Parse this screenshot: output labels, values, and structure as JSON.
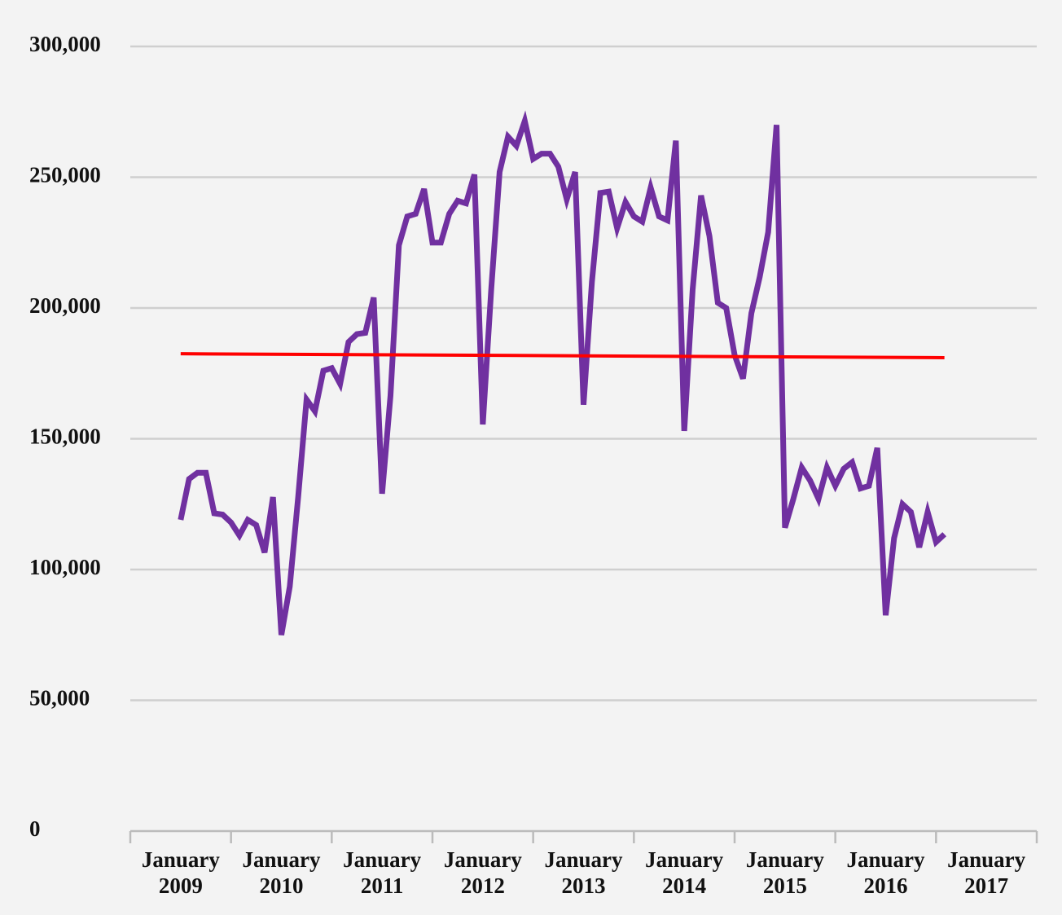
{
  "chart_data": {
    "type": "line",
    "categories": [
      "January 2009",
      null,
      null,
      null,
      null,
      null,
      null,
      null,
      null,
      null,
      null,
      null,
      "January 2010",
      null,
      null,
      null,
      null,
      null,
      null,
      null,
      null,
      null,
      null,
      null,
      "January 2011",
      null,
      null,
      null,
      null,
      null,
      null,
      null,
      null,
      null,
      null,
      null,
      "January 2012",
      null,
      null,
      null,
      null,
      null,
      null,
      null,
      null,
      null,
      null,
      null,
      "January 2013",
      null,
      null,
      null,
      null,
      null,
      null,
      null,
      null,
      null,
      null,
      null,
      "January 2014",
      null,
      null,
      null,
      null,
      null,
      null,
      null,
      null,
      null,
      null,
      null,
      "January 2015",
      null,
      null,
      null,
      null,
      null,
      null,
      null,
      null,
      null,
      null,
      null,
      "January 2016",
      null,
      null,
      null,
      null,
      null,
      null,
      null,
      null,
      null,
      null,
      null,
      "January 2017"
    ],
    "series": [
      {
        "color": "#7030a0",
        "values": [
          119000,
          134600,
          137000,
          137000,
          121500,
          121000,
          118000,
          113000,
          119000,
          117000,
          106500,
          127700,
          75000,
          93500,
          127700,
          165000,
          160500,
          176000,
          177000,
          171000,
          187000,
          190000,
          190500,
          204000,
          129000,
          166500,
          224000,
          235000,
          236000,
          245500,
          225000,
          225000,
          236000,
          241000,
          240000,
          251000,
          155500,
          207000,
          252000,
          265500,
          262000,
          271500,
          257000,
          259000,
          259000,
          254000,
          241500,
          252000,
          163000,
          210000,
          244000,
          244500,
          230500,
          240500,
          235000,
          233000,
          246000,
          235000,
          233500,
          264000,
          153000,
          207000,
          243000,
          227500,
          202000,
          200000,
          182000,
          173000,
          198000,
          212000,
          229000,
          270000,
          116000,
          127000,
          139000,
          134000,
          127000,
          139000,
          132000,
          138500,
          141000,
          131000,
          132000,
          146500,
          82500,
          112000,
          125000,
          122000,
          108500,
          122000,
          110500,
          113500,
          null,
          null,
          null,
          null,
          null
        ]
      }
    ],
    "trend": {
      "color": "#ff0000",
      "values": [
        182500,
        181000
      ]
    },
    "ylim": [
      0,
      300000
    ],
    "yticks": [
      0,
      {
        "value": 50000,
        "label": "50,000"
      },
      {
        "value": 100000,
        "label": "100,000"
      },
      {
        "value": 150000,
        "label": "150,000"
      },
      {
        "value": 200000,
        "label": "200,000"
      },
      {
        "value": 250000,
        "label": "250,000"
      },
      {
        "value": 300000,
        "label": "300,000"
      }
    ],
    "grid": true
  }
}
